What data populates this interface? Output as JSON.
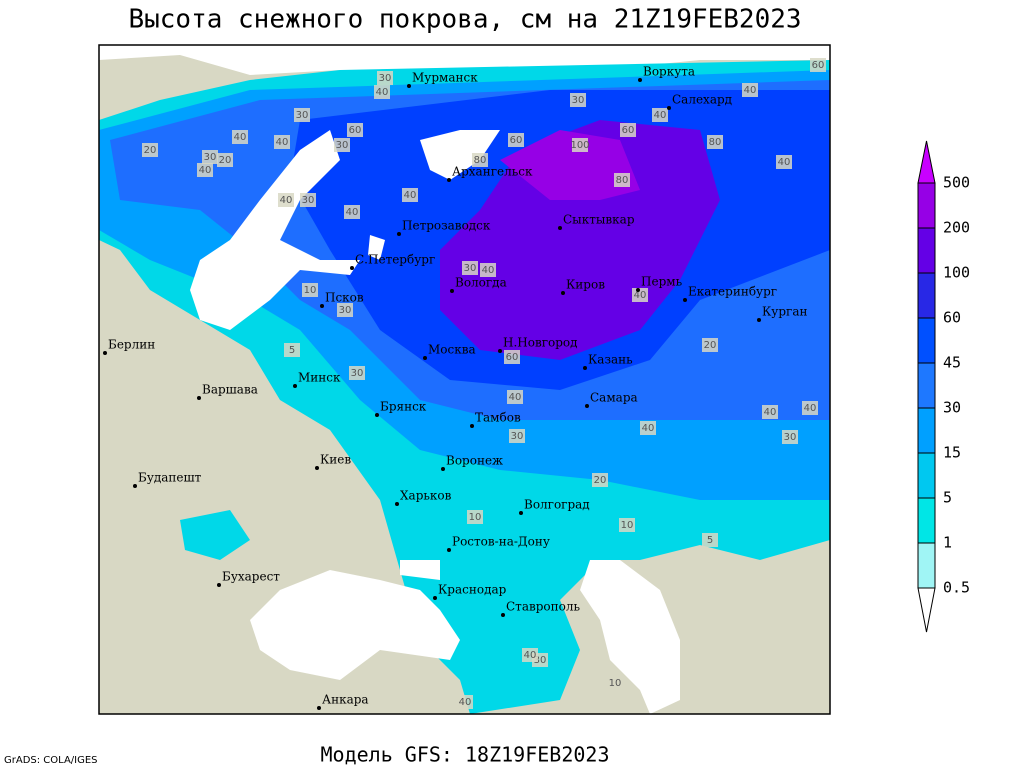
{
  "title": "Высота снежного покрова, см на 21Z19FEB2023",
  "footer": "Модель GFS: 18Z19FEB2023",
  "credit": "GrADS: COLA/IGES",
  "legend": {
    "levels": [
      0.5,
      1,
      5,
      15,
      30,
      45,
      60,
      100,
      200,
      500
    ],
    "colors": [
      "#ffffff",
      "#a0f5f5",
      "#00e6e6",
      "#00c8f0",
      "#00a0ff",
      "#1e78ff",
      "#0050ff",
      "#2828e6",
      "#6400e6",
      "#9600e6",
      "#c800ff"
    ]
  },
  "cities": [
    "Мурманск",
    "Воркута",
    "Салехард",
    "Архангельск",
    "Петрозаводск",
    "Сыктывкар",
    "С.Петербург",
    "Вологда",
    "Киров",
    "Пермь",
    "Екатеринбург",
    "Курган",
    "Псков",
    "Берлин",
    "Н.Новгород",
    "Москва",
    "Казань",
    "Минск",
    "Варшава",
    "Самара",
    "Брянск",
    "Тамбов",
    "Киев",
    "Воронеж",
    "Будапешт",
    "Харьков",
    "Волгоград",
    "Ростов-на-Дону",
    "Бухарест",
    "Краснодар",
    "Ставрополь",
    "Анкара"
  ],
  "contour_labels": [
    30,
    40,
    30,
    40,
    20,
    40,
    30,
    40,
    60,
    100,
    80,
    60,
    80,
    40,
    30,
    40,
    60,
    40,
    30,
    40,
    40,
    30,
    40,
    10,
    30,
    5,
    30,
    40,
    40,
    30,
    20,
    10,
    5,
    10,
    20,
    30,
    40,
    40,
    30,
    40,
    10,
    40,
    30,
    40,
    60,
    20,
    40,
    80,
    60
  ]
}
